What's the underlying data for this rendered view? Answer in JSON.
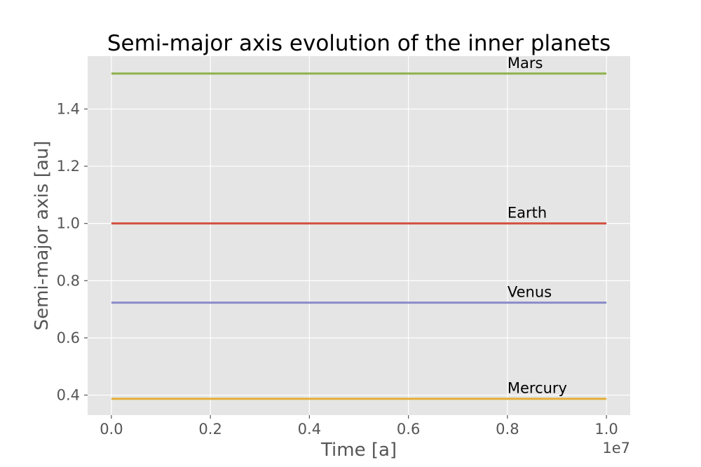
{
  "chart_data": {
    "type": "line",
    "title": "Semi-major axis evolution of the inner planets",
    "xlabel": "Time [a]",
    "ylabel": "Semi-major axis [au]",
    "x_offset_label": "1e7",
    "xlim": [
      -0.048,
      1.048
    ],
    "ylim": [
      0.33,
      1.585
    ],
    "xticks": [
      0.0,
      0.2,
      0.4,
      0.6,
      0.8,
      1.0
    ],
    "xtick_labels": [
      "0.0",
      "0.2",
      "0.4",
      "0.6",
      "0.8",
      "1.0"
    ],
    "yticks": [
      0.4,
      0.6,
      0.8,
      1.0,
      1.2,
      1.4
    ],
    "ytick_labels": [
      "0.4",
      "0.6",
      "0.8",
      "1.0",
      "1.2",
      "1.4"
    ],
    "grid": true,
    "background": "#E5E5E5",
    "series": [
      {
        "name": "Mercury",
        "color": "#E5AE38",
        "x": [
          0.0,
          1.0
        ],
        "values": [
          0.387,
          0.387
        ],
        "label_x": 0.8
      },
      {
        "name": "Venus",
        "color": "#8B8BC8",
        "x": [
          0.0,
          1.0
        ],
        "values": [
          0.723,
          0.723
        ],
        "label_x": 0.8
      },
      {
        "name": "Earth",
        "color": "#D3513F",
        "x": [
          0.0,
          1.0
        ],
        "values": [
          1.0,
          1.0
        ],
        "label_x": 0.8
      },
      {
        "name": "Mars",
        "color": "#8EB24A",
        "x": [
          0.0,
          1.0
        ],
        "values": [
          1.524,
          1.524
        ],
        "label_x": 0.8
      }
    ]
  }
}
